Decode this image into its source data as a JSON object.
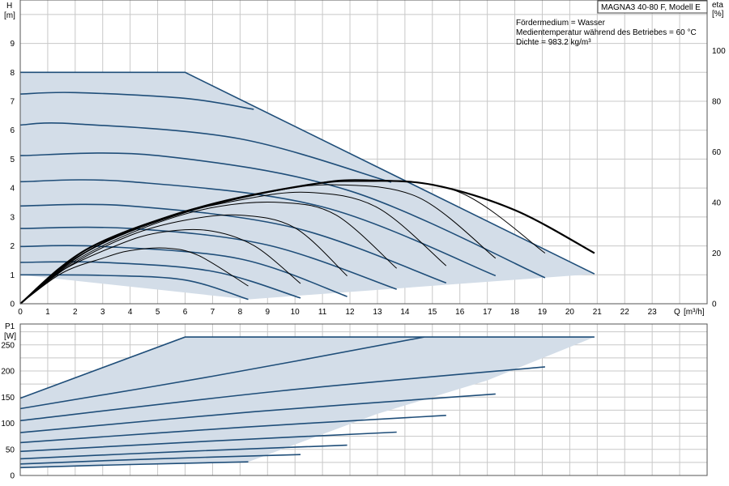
{
  "chart_data": [
    {
      "type": "line",
      "title": "MAGNA3 40-80 F, Modell E",
      "annotations": [
        "Fördermedium = Wasser",
        "Medientemperatur während des Betriebes = 60 °C",
        "Dichte = 983.2 kg/m³"
      ],
      "y_name": "H",
      "y_unit": "[m]",
      "y2_name": "eta",
      "y2_unit": "[%]",
      "x_name": "Q",
      "x_unit": "[m³/h]",
      "xlim": [
        0,
        25
      ],
      "ylim": [
        0,
        10.5
      ],
      "y2lim": [
        0,
        120
      ],
      "x_ticks": [
        0,
        1,
        2,
        3,
        4,
        5,
        6,
        7,
        8,
        9,
        10,
        11,
        12,
        13,
        14,
        15,
        16,
        17,
        18,
        19,
        20,
        21,
        22,
        23
      ],
      "y_ticks": [
        0,
        1,
        2,
        3,
        4,
        5,
        6,
        7,
        8,
        9
      ],
      "y2_ticks": [
        0,
        20,
        40,
        60,
        80,
        100
      ],
      "grid": true,
      "envelope": [
        [
          0,
          8.0
        ],
        [
          6.0,
          8.0
        ],
        [
          20.9,
          1.03
        ],
        [
          8.3,
          0.15
        ],
        [
          0,
          1.0
        ]
      ],
      "series": [
        {
          "points": [
            [
              0,
              1.0
            ],
            [
              3.0,
              0.98
            ],
            [
              6.0,
              0.82
            ],
            [
              8.3,
              0.15
            ]
          ]
        },
        {
          "points": [
            [
              0,
              1.43
            ],
            [
              3.0,
              1.43
            ],
            [
              7.0,
              1.12
            ],
            [
              10.2,
              0.2
            ]
          ]
        },
        {
          "points": [
            [
              0,
              1.98
            ],
            [
              3.0,
              1.98
            ],
            [
              8.0,
              1.55
            ],
            [
              11.9,
              0.25
            ]
          ]
        },
        {
          "points": [
            [
              0,
              2.6
            ],
            [
              4.0,
              2.6
            ],
            [
              9.0,
              2.03
            ],
            [
              13.7,
              0.5
            ]
          ]
        },
        {
          "points": [
            [
              0,
              3.38
            ],
            [
              4.0,
              3.38
            ],
            [
              10.0,
              2.62
            ],
            [
              15.5,
              0.72
            ]
          ]
        },
        {
          "points": [
            [
              0,
              4.22
            ],
            [
              4.0,
              4.22
            ],
            [
              11.0,
              3.35
            ],
            [
              17.3,
              0.97
            ]
          ]
        },
        {
          "points": [
            [
              0,
              5.12
            ],
            [
              5.0,
              5.12
            ],
            [
              12.0,
              3.9
            ],
            [
              19.1,
              0.9
            ]
          ]
        },
        {
          "points": [
            [
              0,
              6.18
            ],
            [
              2.0,
              6.22
            ],
            [
              8.0,
              5.7
            ],
            [
              13.5,
              4.2
            ]
          ]
        },
        {
          "points": [
            [
              0,
              7.25
            ],
            [
              2.0,
              7.3
            ],
            [
              6.0,
              7.1
            ],
            [
              8.5,
              6.72
            ]
          ]
        },
        {
          "points": [
            [
              0,
              8.0
            ],
            [
              6.0,
              8.0
            ],
            [
              20.9,
              1.03
            ]
          ]
        }
      ],
      "efficiency_series": [
        {
          "points": [
            [
              0,
              0
            ],
            [
              1.5,
              12
            ],
            [
              3.0,
              18
            ],
            [
              4.0,
              21
            ],
            [
              5.3,
              22
            ],
            [
              6.5,
              19
            ],
            [
              8.3,
              7
            ]
          ]
        },
        {
          "points": [
            [
              0,
              0
            ],
            [
              1.5,
              13
            ],
            [
              3.5,
              23
            ],
            [
              5.0,
              28
            ],
            [
              6.8,
              29
            ],
            [
              8.5,
              23
            ],
            [
              10.2,
              8
            ]
          ]
        },
        {
          "points": [
            [
              0,
              0
            ],
            [
              1.8,
              15
            ],
            [
              4.0,
              27
            ],
            [
              6.0,
              33
            ],
            [
              8.0,
              35
            ],
            [
              10.0,
              30
            ],
            [
              11.9,
              11
            ]
          ]
        },
        {
          "points": [
            [
              0,
              0
            ],
            [
              2.0,
              17
            ],
            [
              4.5,
              30
            ],
            [
              7.0,
              38
            ],
            [
              9.5,
              40
            ],
            [
              11.5,
              35
            ],
            [
              13.7,
              14
            ]
          ]
        },
        {
          "points": [
            [
              0,
              0
            ],
            [
              2.0,
              18
            ],
            [
              5.0,
              33
            ],
            [
              8.0,
              41
            ],
            [
              10.5,
              44
            ],
            [
              13.0,
              38
            ],
            [
              15.5,
              15
            ]
          ]
        },
        {
          "points": [
            [
              0,
              0
            ],
            [
              2.3,
              20
            ],
            [
              5.5,
              35
            ],
            [
              9.0,
              44
            ],
            [
              11.5,
              47
            ],
            [
              14.5,
              42
            ],
            [
              17.3,
              18
            ]
          ]
        },
        {
          "points": [
            [
              0,
              0
            ],
            [
              2.5,
              21
            ],
            [
              6.0,
              36
            ],
            [
              10.0,
              46
            ],
            [
              12.5,
              49
            ],
            [
              16.0,
              44
            ],
            [
              19.1,
              20
            ]
          ]
        },
        {
          "points": [
            [
              0,
              0
            ],
            [
              2.5,
              22
            ],
            [
              6.5,
              38
            ],
            [
              10.5,
              47
            ],
            [
              12.5,
              48.5
            ],
            [
              15.0,
              47
            ],
            [
              18.0,
              37
            ],
            [
              20.9,
              20
            ]
          ]
        }
      ]
    },
    {
      "type": "line",
      "y_name": "P1",
      "y_unit": "[W]",
      "xlim": [
        0,
        25
      ],
      "ylim": [
        0,
        290
      ],
      "y_ticks": [
        0,
        50,
        100,
        150,
        200,
        250
      ],
      "grid": true,
      "envelope": [
        [
          0,
          148
        ],
        [
          6.0,
          265
        ],
        [
          20.9,
          265
        ],
        [
          17.0,
          182
        ],
        [
          13.0,
          118
        ],
        [
          8.3,
          26
        ],
        [
          0,
          15
        ]
      ],
      "series": [
        {
          "points": [
            [
              0,
              15
            ],
            [
              4.0,
              21
            ],
            [
              8.3,
              26
            ]
          ]
        },
        {
          "points": [
            [
              0,
              22
            ],
            [
              5.0,
              32
            ],
            [
              10.2,
              40
            ]
          ]
        },
        {
          "points": [
            [
              0,
              32
            ],
            [
              6.0,
              46
            ],
            [
              11.9,
              58
            ]
          ]
        },
        {
          "points": [
            [
              0,
              46
            ],
            [
              7.0,
              66
            ],
            [
              13.7,
              83
            ]
          ]
        },
        {
          "points": [
            [
              0,
              63
            ],
            [
              8.0,
              92
            ],
            [
              15.5,
              115
            ]
          ]
        },
        {
          "points": [
            [
              0,
              82
            ],
            [
              8.5,
              122
            ],
            [
              17.3,
              156
            ]
          ]
        },
        {
          "points": [
            [
              0,
              105
            ],
            [
              9.5,
              162
            ],
            [
              19.1,
              208
            ]
          ]
        },
        {
          "points": [
            [
              0,
              128
            ],
            [
              7.0,
              190
            ],
            [
              14.7,
              265
            ]
          ]
        },
        {
          "points": [
            [
              0,
              148
            ],
            [
              6.0,
              265
            ],
            [
              20.9,
              265
            ]
          ]
        }
      ]
    }
  ]
}
